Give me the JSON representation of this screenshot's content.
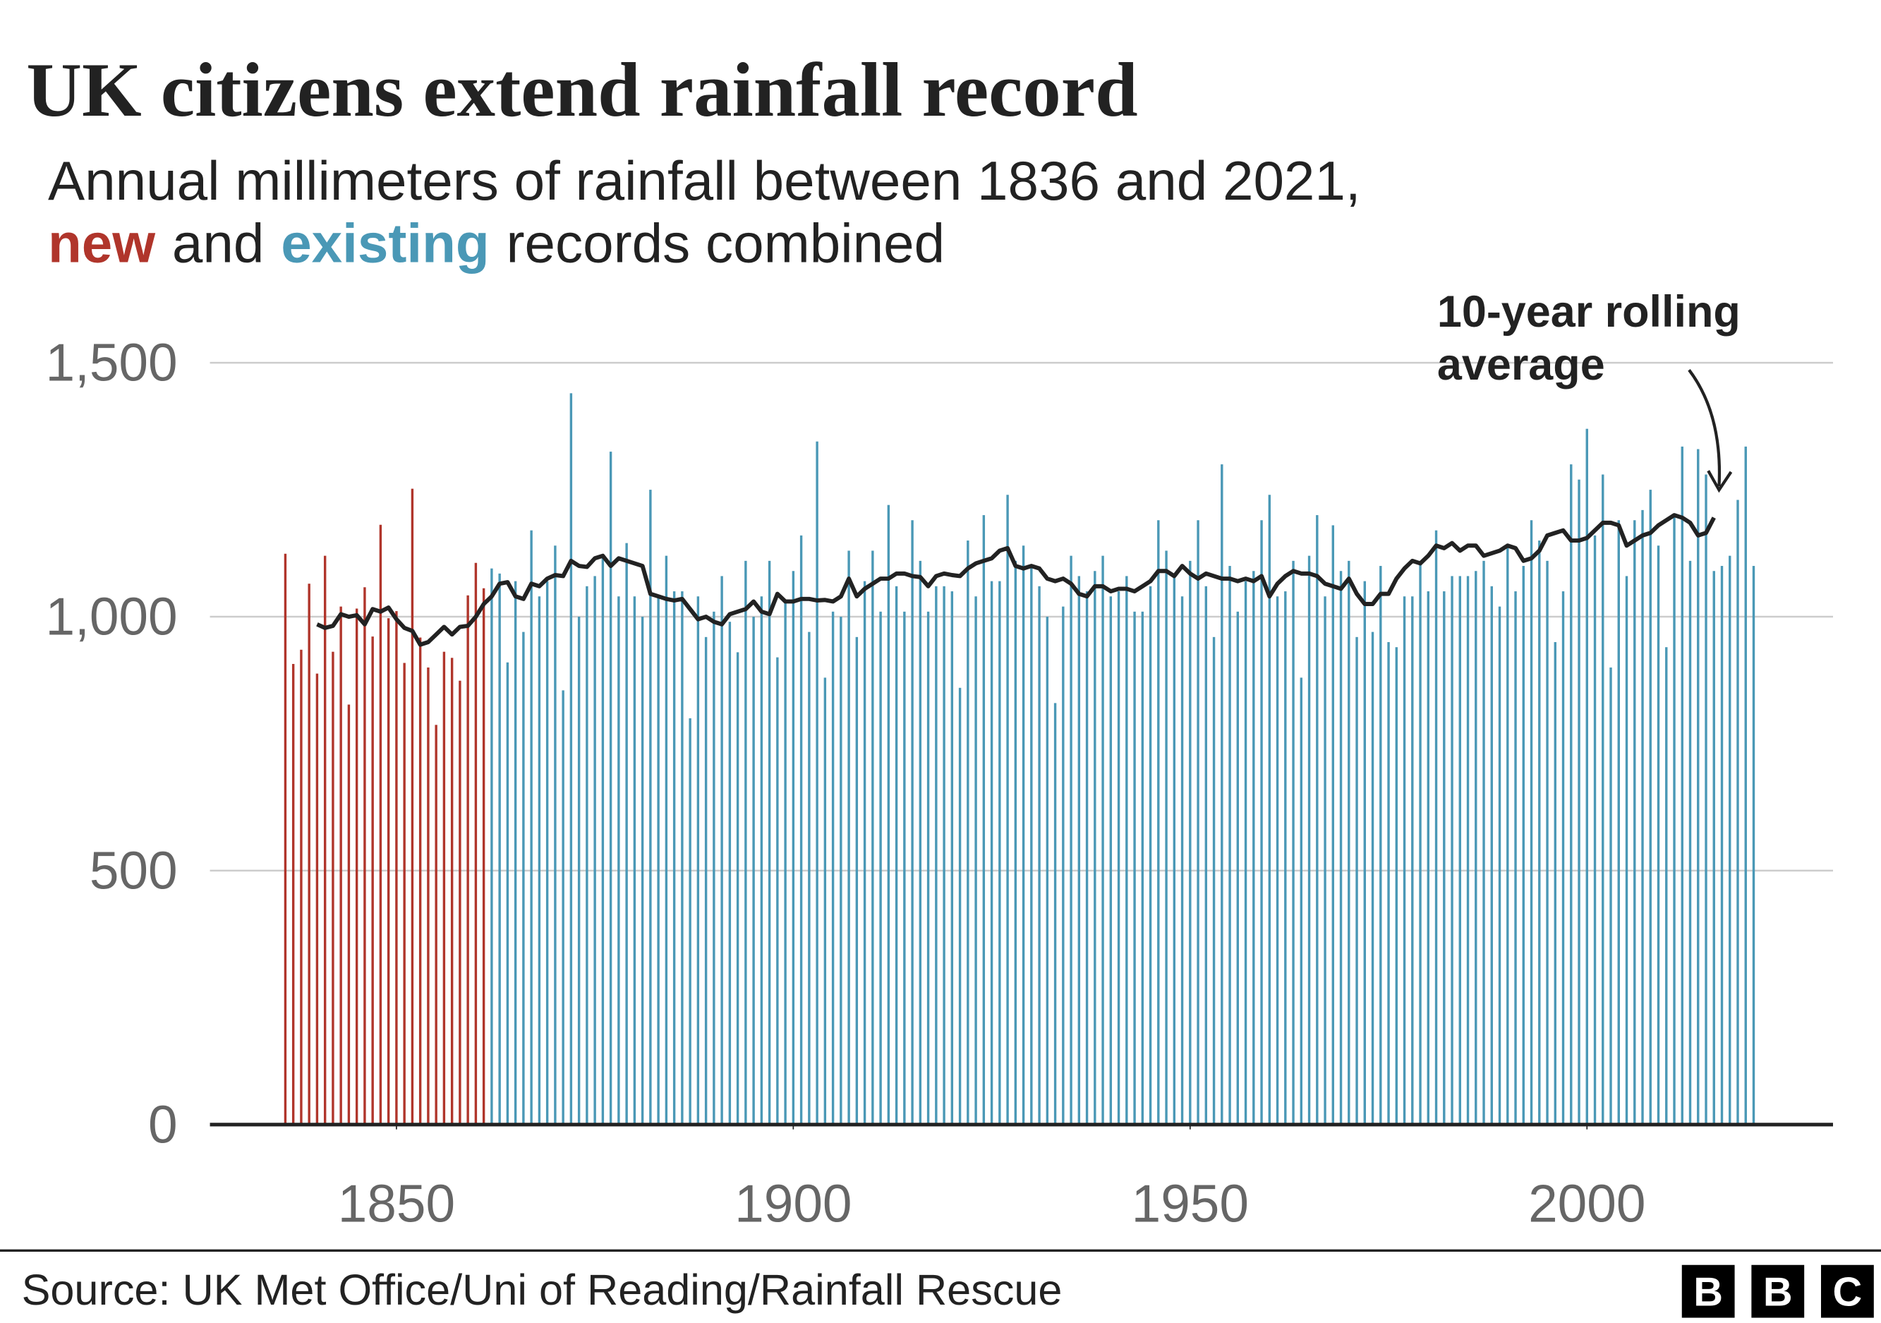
{
  "chart_data": {
    "type": "bar",
    "title": "UK citizens extend rainfall record",
    "subtitle": "Annual millimeters of rainfall between 1836 and 2021,",
    "subtitle_joiner": "and",
    "subtitle_end": "records combined",
    "annotation": [
      "10-year rolling",
      "average"
    ],
    "source": "Source: UK Met Office/Uni of Reading/Rainfall Rescue",
    "logo": [
      "B",
      "B",
      "C"
    ],
    "xlim": [
      1826.5,
      2031
    ],
    "xticks": [
      1850,
      1900,
      1950,
      2000
    ],
    "ylim": [
      0,
      1500
    ],
    "yticks": [
      0,
      500,
      {
        "value": 1000,
        "label": "1,000"
      },
      {
        "value": 1500,
        "label": "1,500"
      }
    ],
    "grid": true,
    "series": [
      {
        "name": "new",
        "type": "bar",
        "color": "#b0352b",
        "x": [
          1836,
          1837,
          1838,
          1839,
          1840,
          1841,
          1842,
          1843,
          1844,
          1845,
          1846,
          1847,
          1848,
          1849,
          1850,
          1851,
          1852,
          1853,
          1854,
          1855,
          1856,
          1857,
          1858,
          1859,
          1860,
          1861
        ],
        "values": [
          1124,
          907,
          935,
          1065,
          888,
          1120,
          931,
          1020,
          827,
          1016,
          1058,
          961,
          1181,
          997,
          1011,
          909,
          1252,
          959,
          900,
          787,
          931,
          919,
          874,
          1042,
          1106,
          1056
        ]
      },
      {
        "name": "existing",
        "type": "bar",
        "color": "#4a98b6",
        "x": [
          1862,
          1863,
          1864,
          1865,
          1866,
          1867,
          1868,
          1869,
          1870,
          1871,
          1872,
          1873,
          1874,
          1875,
          1876,
          1877,
          1878,
          1879,
          1880,
          1881,
          1882,
          1883,
          1884,
          1885,
          1886,
          1887,
          1888,
          1889,
          1890,
          1891,
          1892,
          1893,
          1894,
          1895,
          1896,
          1897,
          1898,
          1899,
          1900,
          1901,
          1902,
          1903,
          1904,
          1905,
          1906,
          1907,
          1908,
          1909,
          1910,
          1911,
          1912,
          1913,
          1914,
          1915,
          1916,
          1917,
          1918,
          1919,
          1920,
          1921,
          1922,
          1923,
          1924,
          1925,
          1926,
          1927,
          1928,
          1929,
          1930,
          1931,
          1932,
          1933,
          1934,
          1935,
          1936,
          1937,
          1938,
          1939,
          1940,
          1941,
          1942,
          1943,
          1944,
          1945,
          1946,
          1947,
          1948,
          1949,
          1950,
          1951,
          1952,
          1953,
          1954,
          1955,
          1956,
          1957,
          1958,
          1959,
          1960,
          1961,
          1962,
          1963,
          1964,
          1965,
          1966,
          1967,
          1968,
          1969,
          1970,
          1971,
          1972,
          1973,
          1974,
          1975,
          1976,
          1977,
          1978,
          1979,
          1980,
          1981,
          1982,
          1983,
          1984,
          1985,
          1986,
          1987,
          1988,
          1989,
          1990,
          1991,
          1992,
          1993,
          1994,
          1995,
          1996,
          1997,
          1998,
          1999,
          2000,
          2001,
          2002,
          2003,
          2004,
          2005,
          2006,
          2007,
          2008,
          2009,
          2010,
          2011,
          2012,
          2013,
          2014,
          2015,
          2016,
          2017,
          2018,
          2019,
          2020,
          2021
        ],
        "values": [
          1095,
          1085,
          910,
          1070,
          970,
          1170,
          1040,
          1070,
          1140,
          855,
          1440,
          1000,
          1060,
          1080,
          1120,
          1325,
          1040,
          1145,
          1040,
          1000,
          1250,
          1040,
          1120,
          1050,
          1050,
          800,
          1040,
          960,
          1010,
          1080,
          990,
          930,
          1110,
          1000,
          1040,
          1110,
          920,
          1030,
          1090,
          1160,
          970,
          1345,
          880,
          1010,
          1000,
          1130,
          960,
          1070,
          1130,
          1010,
          1220,
          1060,
          1010,
          1190,
          1110,
          1010,
          1060,
          1060,
          1050,
          860,
          1150,
          1040,
          1200,
          1070,
          1070,
          1240,
          1110,
          1140,
          1100,
          1060,
          1000,
          830,
          1020,
          1120,
          1080,
          1050,
          1090,
          1120,
          1040,
          1050,
          1080,
          1010,
          1010,
          1060,
          1190,
          1130,
          1080,
          1040,
          1110,
          1190,
          1060,
          960,
          1300,
          1100,
          1010,
          1070,
          1090,
          1190,
          1240,
          1040,
          1050,
          1110,
          880,
          1120,
          1200,
          1040,
          1180,
          1090,
          1110,
          960,
          1070,
          970,
          1100,
          950,
          940,
          1040,
          1040,
          1110,
          1050,
          1170,
          1050,
          1080,
          1080,
          1080,
          1090,
          1110,
          1060,
          1020,
          1140,
          1050,
          1100,
          1190,
          1150,
          1110,
          950,
          1050,
          1300,
          1270,
          1370,
          1160,
          1280,
          900,
          1190,
          1080,
          1190,
          1210,
          1250,
          1140,
          940,
          1200,
          1335,
          1110,
          1330,
          1280,
          1090,
          1100,
          1120,
          1230,
          1335,
          1100
        ]
      },
      {
        "type": "line",
        "color": "#222222",
        "x": [
          1840,
          1841,
          1842,
          1843,
          1844,
          1845,
          1846,
          1847,
          1848,
          1849,
          1850,
          1851,
          1852,
          1853,
          1854,
          1855,
          1856,
          1857,
          1858,
          1859,
          1860,
          1861,
          1862,
          1863,
          1864,
          1865,
          1866,
          1867,
          1868,
          1869,
          1870,
          1871,
          1872,
          1873,
          1874,
          1875,
          1876,
          1877,
          1878,
          1879,
          1880,
          1881,
          1882,
          1883,
          1884,
          1885,
          1886,
          1887,
          1888,
          1889,
          1890,
          1891,
          1892,
          1893,
          1894,
          1895,
          1896,
          1897,
          1898,
          1899,
          1900,
          1901,
          1902,
          1903,
          1904,
          1905,
          1906,
          1907,
          1908,
          1909,
          1910,
          1911,
          1912,
          1913,
          1914,
          1915,
          1916,
          1917,
          1918,
          1919,
          1920,
          1921,
          1922,
          1923,
          1924,
          1925,
          1926,
          1927,
          1928,
          1929,
          1930,
          1931,
          1932,
          1933,
          1934,
          1935,
          1936,
          1937,
          1938,
          1939,
          1940,
          1941,
          1942,
          1943,
          1944,
          1945,
          1946,
          1947,
          1948,
          1949,
          1950,
          1951,
          1952,
          1953,
          1954,
          1955,
          1956,
          1957,
          1958,
          1959,
          1960,
          1961,
          1962,
          1963,
          1964,
          1965,
          1966,
          1967,
          1968,
          1969,
          1970,
          1971,
          1972,
          1973,
          1974,
          1975,
          1976,
          1977,
          1978,
          1979,
          1980,
          1981,
          1982,
          1983,
          1984,
          1985,
          1986,
          1987,
          1988,
          1989,
          1990,
          1991,
          1992,
          1993,
          1994,
          1995,
          1996,
          1997,
          1998,
          1999,
          2000,
          2001,
          2002,
          2003,
          2004,
          2005,
          2006,
          2007,
          2008,
          2009,
          2010,
          2011,
          2012,
          2013,
          2014,
          2015,
          2016
        ],
        "values": [
          985,
          978,
          982,
          1005,
          1000,
          1003,
          985,
          1015,
          1010,
          1018,
          995,
          978,
          972,
          945,
          950,
          965,
          980,
          965,
          980,
          982,
          1000,
          1025,
          1040,
          1065,
          1068,
          1040,
          1035,
          1065,
          1060,
          1075,
          1082,
          1080,
          1110,
          1100,
          1098,
          1115,
          1120,
          1100,
          1115,
          1110,
          1105,
          1100,
          1045,
          1040,
          1035,
          1032,
          1035,
          1015,
          995,
          1000,
          990,
          985,
          1005,
          1010,
          1015,
          1030,
          1010,
          1005,
          1045,
          1030,
          1030,
          1035,
          1035,
          1032,
          1033,
          1030,
          1040,
          1075,
          1040,
          1055,
          1065,
          1075,
          1075,
          1085,
          1085,
          1080,
          1078,
          1060,
          1080,
          1085,
          1082,
          1080,
          1095,
          1105,
          1110,
          1115,
          1130,
          1135,
          1100,
          1095,
          1100,
          1095,
          1075,
          1070,
          1075,
          1065,
          1045,
          1040,
          1060,
          1060,
          1050,
          1055,
          1055,
          1050,
          1060,
          1070,
          1090,
          1090,
          1080,
          1100,
          1085,
          1075,
          1085,
          1080,
          1075,
          1075,
          1070,
          1075,
          1070,
          1080,
          1040,
          1065,
          1080,
          1090,
          1085,
          1085,
          1080,
          1065,
          1060,
          1055,
          1075,
          1045,
          1025,
          1025,
          1045,
          1045,
          1075,
          1095,
          1110,
          1105,
          1120,
          1140,
          1135,
          1145,
          1130,
          1140,
          1140,
          1120,
          1125,
          1130,
          1140,
          1135,
          1110,
          1115,
          1130,
          1160,
          1165,
          1170,
          1150,
          1150,
          1155,
          1170,
          1185,
          1185,
          1180,
          1140,
          1150,
          1160,
          1165,
          1180,
          1190,
          1200,
          1195,
          1185,
          1160,
          1165,
          1195
        ]
      }
    ]
  }
}
